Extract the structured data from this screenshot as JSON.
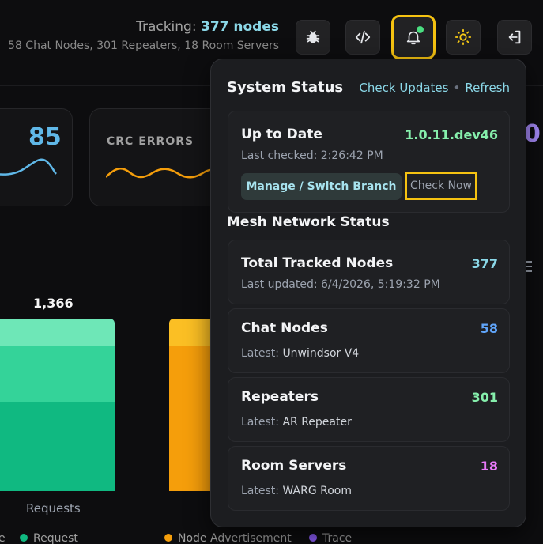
{
  "header": {
    "tracking_label": "Tracking: ",
    "tracking_count": "377 nodes",
    "tracking_breakdown": "58 Chat Nodes, 301 Repeaters, 18 Room Servers",
    "buttons": [
      {
        "name": "bug-button",
        "icon": "bug-icon"
      },
      {
        "name": "code-button",
        "icon": "code-icon"
      },
      {
        "name": "notifications-button",
        "icon": "bell-icon",
        "highlighted": true
      },
      {
        "name": "theme-toggle-button",
        "icon": "sun-icon"
      },
      {
        "name": "logout-button",
        "icon": "logout-icon"
      }
    ]
  },
  "dashboard": {
    "stat_left_value": "85",
    "crc_label": "CRC ERRORS",
    "bar_value_label": "1,366",
    "x_axis_label": "Requests",
    "legend": [
      {
        "label": "e",
        "color": ""
      },
      {
        "label": "Request",
        "color": "#10b981"
      },
      {
        "label": "Node Advertisement",
        "color": "#f59e0b"
      },
      {
        "label": "Trace",
        "color": "#8b5cf6"
      }
    ],
    "peek_value": "0"
  },
  "popup": {
    "title": "System Status",
    "check_updates": "Check Updates",
    "separator": "•",
    "refresh": "Refresh",
    "update_card": {
      "status": "Up to Date",
      "version": "1.0.11.dev46",
      "last_checked": "Last checked: 2:26:42 PM",
      "manage_button": "Manage / Switch Branch",
      "check_now_button": "Check Now"
    },
    "mesh_title": "Mesh Network Status",
    "total": {
      "title": "Total Tracked Nodes",
      "count": "377",
      "updated": "Last updated: 6/4/2026, 5:19:32 PM"
    },
    "node_types": [
      {
        "title": "Chat Nodes",
        "count": "58",
        "latest_label": "Latest: ",
        "latest_value": "Unwindsor V4",
        "color": "#60a5fa"
      },
      {
        "title": "Repeaters",
        "count": "301",
        "latest_label": "Latest: ",
        "latest_value": "AR Repeater",
        "color": "#86efac"
      },
      {
        "title": "Room Servers",
        "count": "18",
        "latest_label": "Latest: ",
        "latest_value": "WARG Room",
        "color": "#e879f9"
      }
    ]
  }
}
